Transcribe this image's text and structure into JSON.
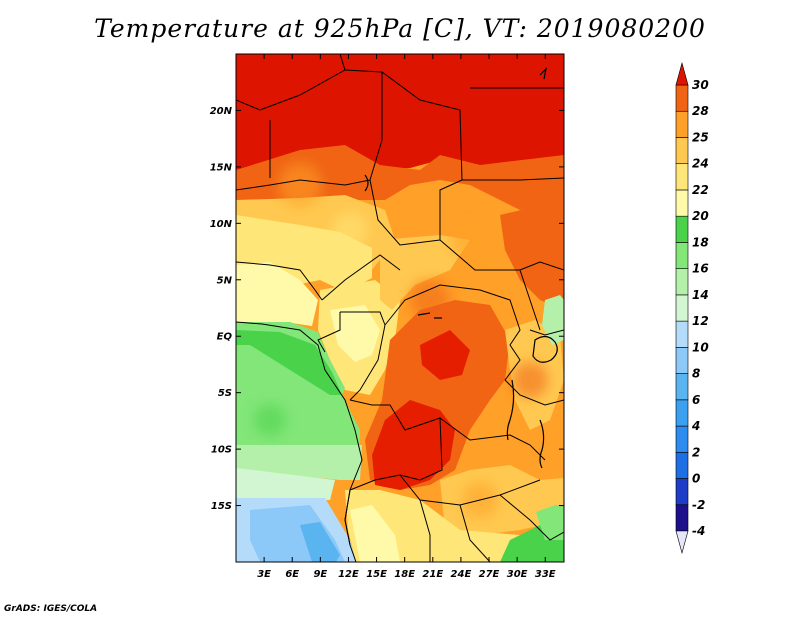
{
  "chart_data": {
    "type": "heatmap",
    "title": "Temperature at 925hPa [C], VT: 2019080200",
    "variable": "Temperature at 925hPa",
    "units": "C",
    "valid_time": "2019080200",
    "xlim": [
      0,
      35
    ],
    "ylim": [
      -20,
      25
    ],
    "x_ticks": [
      {
        "value": 3,
        "label": "3E"
      },
      {
        "value": 6,
        "label": "6E"
      },
      {
        "value": 9,
        "label": "9E"
      },
      {
        "value": 12,
        "label": "12E"
      },
      {
        "value": 15,
        "label": "15E"
      },
      {
        "value": 18,
        "label": "18E"
      },
      {
        "value": 21,
        "label": "21E"
      },
      {
        "value": 24,
        "label": "24E"
      },
      {
        "value": 27,
        "label": "27E"
      },
      {
        "value": 30,
        "label": "30E"
      },
      {
        "value": 33,
        "label": "33E"
      }
    ],
    "y_ticks": [
      {
        "value": 20,
        "label": "20N"
      },
      {
        "value": 15,
        "label": "15N"
      },
      {
        "value": 10,
        "label": "10N"
      },
      {
        "value": 5,
        "label": "5N"
      },
      {
        "value": 0,
        "label": "EQ"
      },
      {
        "value": -5,
        "label": "5S"
      },
      {
        "value": -10,
        "label": "10S"
      },
      {
        "value": -15,
        "label": "15S"
      }
    ],
    "colorbar": {
      "levels": [
        "-4",
        "-2",
        "0",
        "2",
        "4",
        "6",
        "8",
        "10",
        "12",
        "14",
        "16",
        "18",
        "20",
        "22",
        "24",
        "25",
        "28",
        "30"
      ],
      "colors": [
        "#1e0f8c",
        "#1e3cc8",
        "#1e6ee6",
        "#2d8cf0",
        "#3ca0f0",
        "#5ab4f0",
        "#8cc8f8",
        "#b4dcfa",
        "#d2f5d2",
        "#b4f0aa",
        "#82e678",
        "#4bd24b",
        "#fffaaa",
        "#ffe678",
        "#ffc850",
        "#ffa028",
        "#f06414",
        "#e61e00"
      ],
      "under_color": "#e6e6fa",
      "over_color": "#dc1400"
    }
  },
  "credit": "GrADS: IGES/COLA"
}
